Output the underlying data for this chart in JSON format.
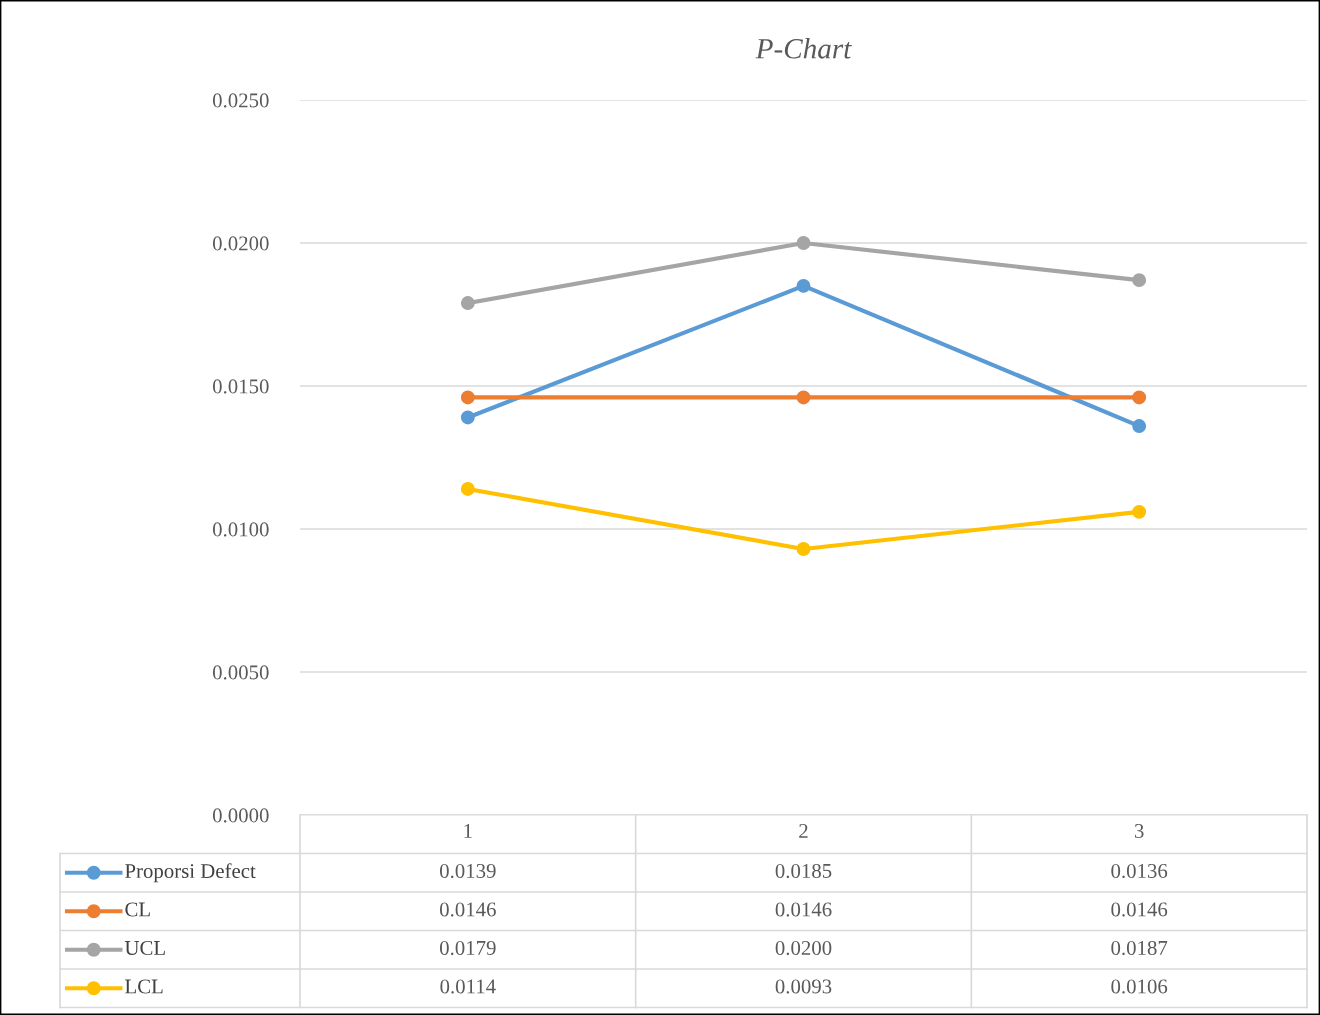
{
  "chart_data": {
    "type": "line",
    "title": "P-Chart",
    "categories": [
      "1",
      "2",
      "3"
    ],
    "series": [
      {
        "name": "Proporsi Defect",
        "color": "#5b9bd5",
        "values": [
          0.0139,
          0.0185,
          0.0136
        ],
        "value_labels": [
          "0.0139",
          "0.0185",
          "0.0136"
        ]
      },
      {
        "name": "CL",
        "color": "#ed7d31",
        "values": [
          0.0146,
          0.0146,
          0.0146
        ],
        "value_labels": [
          "0.0146",
          "0.0146",
          "0.0146"
        ]
      },
      {
        "name": "UCL",
        "color": "#a5a5a5",
        "values": [
          0.0179,
          0.02,
          0.0187
        ],
        "value_labels": [
          "0.0179",
          "0.0200",
          "0.0187"
        ]
      },
      {
        "name": "LCL",
        "color": "#ffc000",
        "values": [
          0.0114,
          0.0093,
          0.0106
        ],
        "value_labels": [
          "0.0114",
          "0.0093",
          "0.0106"
        ]
      }
    ],
    "ylim": [
      0,
      0.025
    ],
    "yticks": [
      {
        "value": 0,
        "label": "0.0000"
      },
      {
        "value": 0.005,
        "label": "0.0050"
      },
      {
        "value": 0.01,
        "label": "0.0100"
      },
      {
        "value": 0.015,
        "label": "0.0150"
      },
      {
        "value": 0.02,
        "label": "0.0200"
      },
      {
        "value": 0.025,
        "label": "0.0250"
      }
    ],
    "grid": "y",
    "legend": "bottom",
    "marker": "circle",
    "line_style": "solid"
  }
}
